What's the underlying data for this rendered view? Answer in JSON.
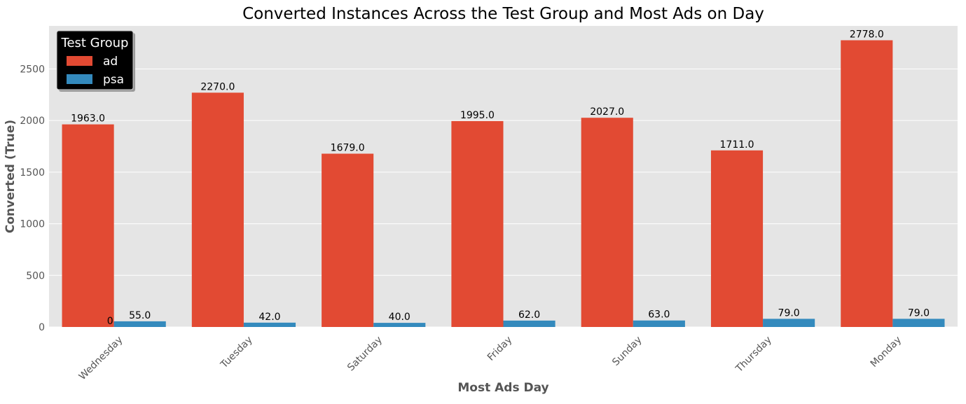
{
  "chart_data": {
    "type": "bar",
    "title": "Converted Instances Across the Test Group and Most Ads on Day",
    "xlabel": "Most Ads Day",
    "ylabel": "Converted (True)",
    "categories": [
      "Wednesday",
      "Tuesday",
      "Saturday",
      "Friday",
      "Sunday",
      "Thursday",
      "Monday"
    ],
    "series": [
      {
        "name": "ad",
        "color": "#E24A33",
        "values": [
          1963.0,
          2270.0,
          1679.0,
          1995.0,
          2027.0,
          1711.0,
          2778.0
        ],
        "labels": [
          "1963.0",
          "2270.0",
          "1679.0",
          "1995.0",
          "2027.0",
          "1711.0",
          "2778.0"
        ]
      },
      {
        "name": "psa",
        "color": "#348ABD",
        "values": [
          55.0,
          42.0,
          40.0,
          62.0,
          63.0,
          79.0,
          79.0
        ],
        "labels": [
          "55.0",
          "42.0",
          "40.0",
          "62.0",
          "63.0",
          "79.0",
          "79.0"
        ]
      }
    ],
    "annotations": [
      {
        "text": "0",
        "category": "Wednesday",
        "value": 0
      }
    ],
    "yticks": [
      0,
      500,
      1000,
      1500,
      2000,
      2500
    ],
    "ylim": [
      0,
      2917
    ],
    "grid": true,
    "legend": {
      "title": "Test Group",
      "placement": "top-left"
    },
    "style": {
      "background": "#E5E5E5",
      "grid_color": "#FFFFFF",
      "legend_background": "#000000"
    }
  }
}
